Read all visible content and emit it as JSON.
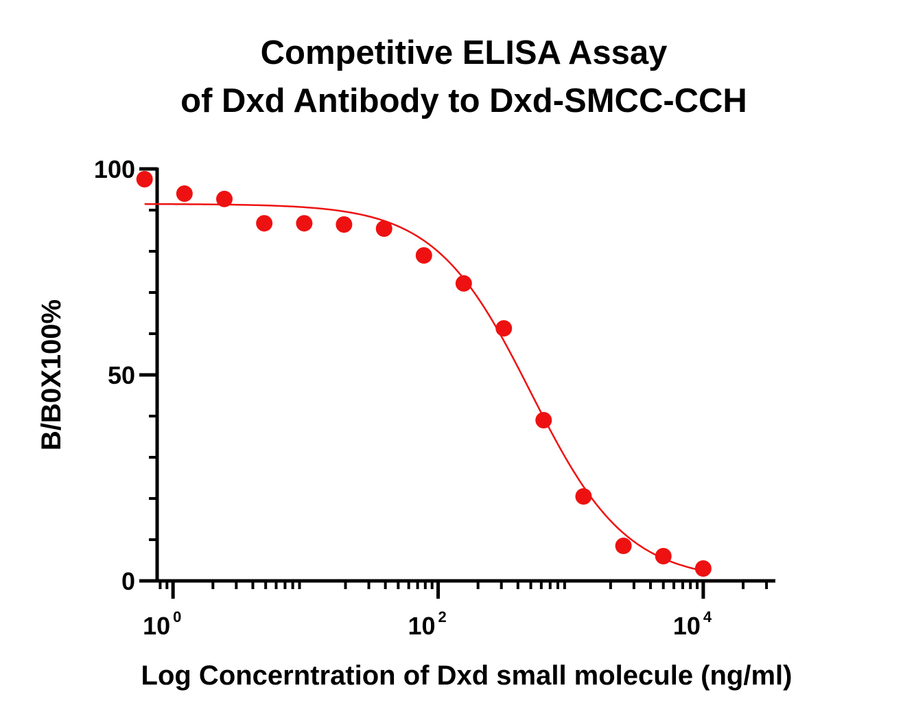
{
  "chart_data": {
    "type": "scatter",
    "title_lines": [
      "Competitive ELISA Assay",
      "of  Dxd Antibody to Dxd-SMCC-CCH"
    ],
    "xlabel": "Log Concerntration of Dxd small molecule (ng/ml)",
    "ylabel": "B/B0X100%",
    "x_scale": "log10",
    "xlim": [
      0.55,
      35000
    ],
    "ylim": [
      0,
      100
    ],
    "y_ticks": [
      {
        "value": 0,
        "label": "0"
      },
      {
        "value": 50,
        "label": "50"
      },
      {
        "value": 100,
        "label": "100"
      }
    ],
    "x_ticks": [
      {
        "value": 1,
        "base": "10",
        "exp": "0"
      },
      {
        "value": 100,
        "base": "10",
        "exp": "2"
      },
      {
        "value": 10000,
        "base": "10",
        "exp": "4"
      }
    ],
    "series": [
      {
        "name": "Dxd Antibody",
        "color": "#ee1111",
        "points": [
          {
            "x": 0.61,
            "y": 97.5
          },
          {
            "x": 1.22,
            "y": 94.0
          },
          {
            "x": 2.44,
            "y": 92.7
          },
          {
            "x": 4.88,
            "y": 86.8
          },
          {
            "x": 9.77,
            "y": 86.8
          },
          {
            "x": 19.5,
            "y": 86.5
          },
          {
            "x": 39.1,
            "y": 85.5
          },
          {
            "x": 78.1,
            "y": 79.0
          },
          {
            "x": 156,
            "y": 72.2
          },
          {
            "x": 313,
            "y": 61.3
          },
          {
            "x": 625,
            "y": 39.0
          },
          {
            "x": 1250,
            "y": 20.5
          },
          {
            "x": 2500,
            "y": 8.5
          },
          {
            "x": 5000,
            "y": 6.0
          },
          {
            "x": 10000,
            "y": 3.0
          }
        ],
        "fit": {
          "model": "4PL",
          "top": 91.5,
          "bottom": 0,
          "ec50": 500,
          "hill": 1.2,
          "x_range": [
            0.61,
            10000
          ]
        }
      }
    ]
  }
}
